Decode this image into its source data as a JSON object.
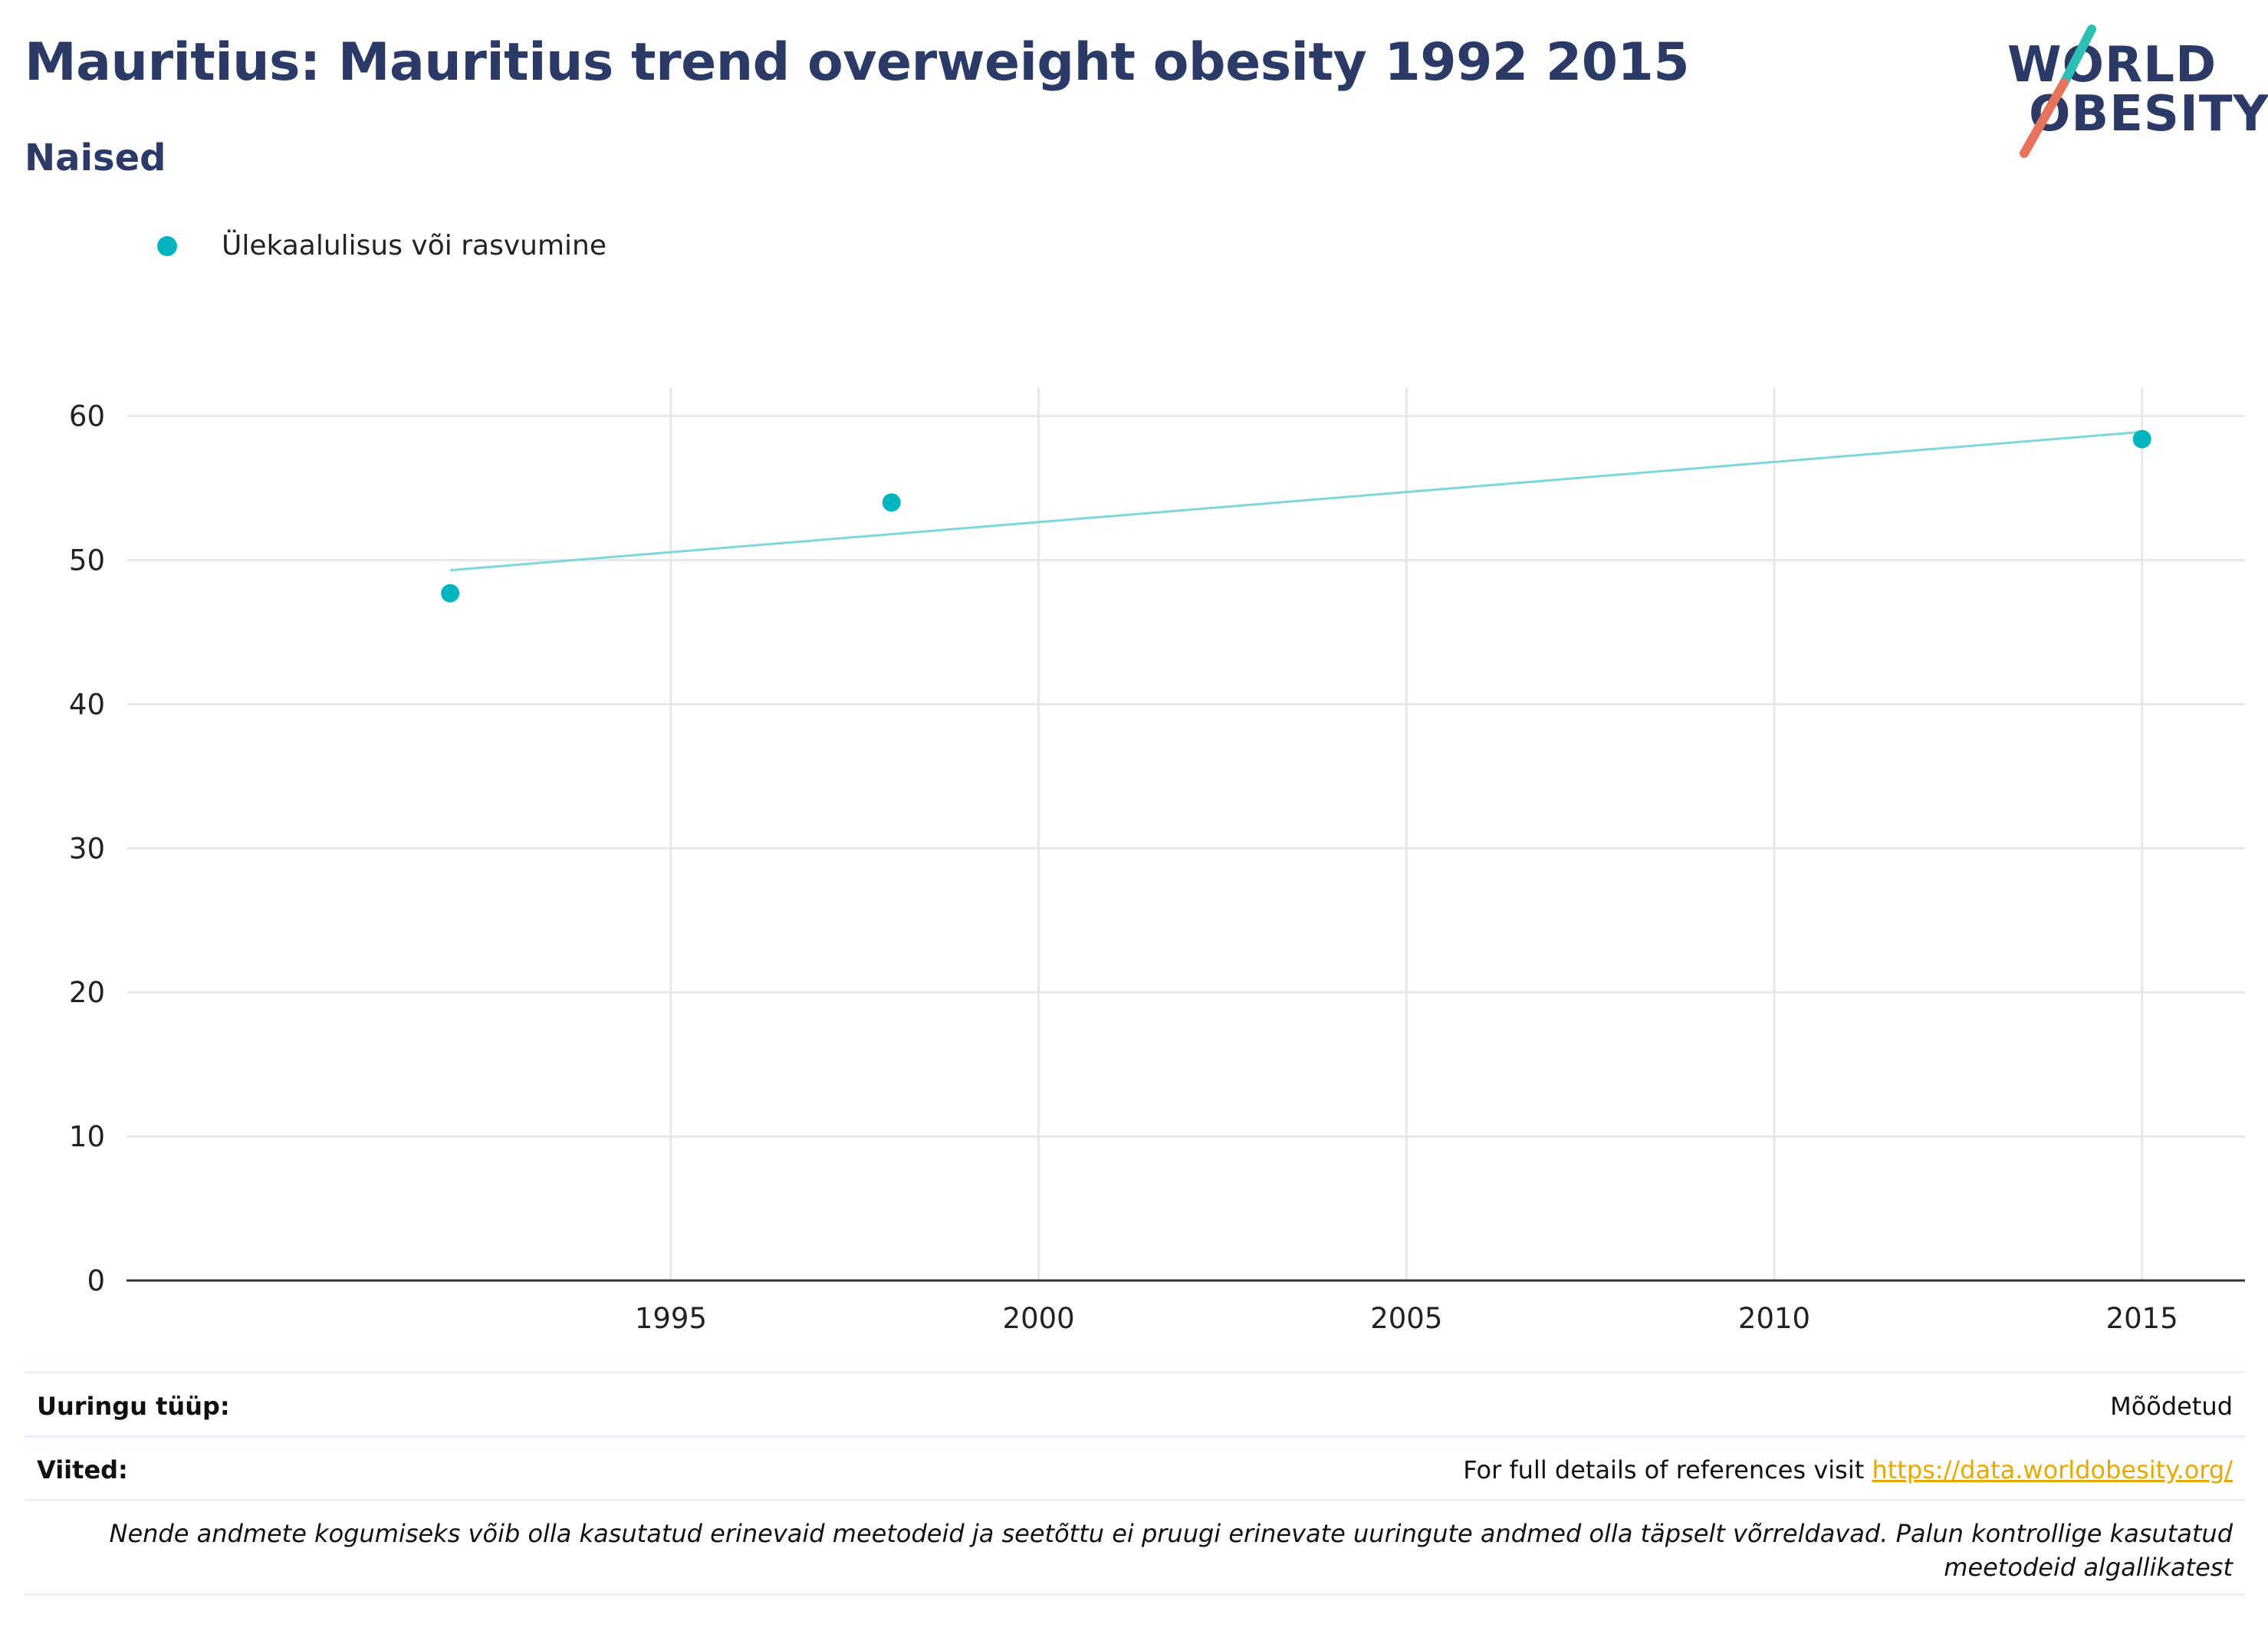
{
  "header": {
    "title": "Mauritius: Mauritius trend overweight obesity 1992 2015",
    "subtitle": "Naised"
  },
  "logo": {
    "line1": "WORLD",
    "line2": "OBESITY",
    "accent_teal": "#2bbfb5",
    "accent_coral": "#e8735c"
  },
  "legend": {
    "label": "Ülekaalulisus või rasvumine",
    "color": "#00b4c0"
  },
  "chart_data": {
    "type": "scatter",
    "series": [
      {
        "name": "Ülekaalulisus või rasvumine",
        "x": [
          1992,
          1998,
          2015
        ],
        "y": [
          47.7,
          54.0,
          58.4
        ],
        "color": "#00b4c0"
      }
    ],
    "trendline": {
      "x": [
        1992,
        2015
      ],
      "y": [
        49.3,
        58.9
      ],
      "color": "#7dd8dc"
    },
    "xlim": [
      1987.6,
      2016.4
    ],
    "ylim": [
      0,
      62
    ],
    "x_ticks": [
      1995,
      2000,
      2005,
      2010,
      2015
    ],
    "y_ticks": [
      0,
      10,
      20,
      30,
      40,
      50,
      60
    ],
    "grid": true
  },
  "footer": {
    "survey_type_label": "Uuringu tüüp:",
    "survey_type_value": "Mõõdetud",
    "references_label": "Viited:",
    "references_text": "For full details of references visit ",
    "references_link": "https://data.worldobesity.org/",
    "note": "Nende andmete kogumiseks võib olla kasutatud erinevaid meetodeid ja seetõttu ei pruugi erinevate uuringute andmed olla täpselt võrreldavad. Palun kontrollige kasutatud meetodeid algallikatest"
  }
}
